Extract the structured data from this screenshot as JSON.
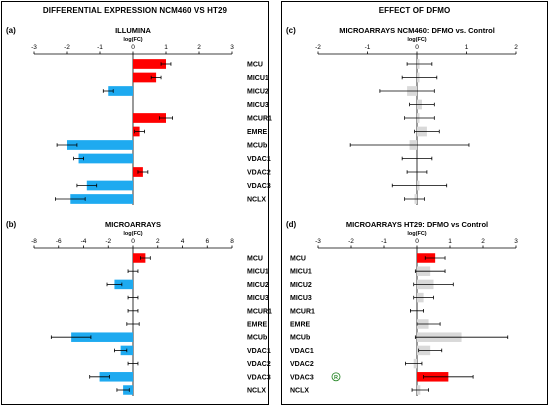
{
  "panels_header": {
    "left_title": "DIFFERENTIAL EXPRESSION NCM460 VS HT29",
    "right_title": "EFFECT OF DFMO"
  },
  "colors": {
    "up": "#ff0000",
    "down": "#1eaaf0",
    "neutral": "#d9d9d9",
    "error": "#000000",
    "marker": "#2e8b2e"
  },
  "chart_data": [
    {
      "id": "a",
      "type": "bar",
      "orientation": "horizontal",
      "letter": "(a)",
      "title": "ILLUMINA",
      "xlabel": "log(FC)",
      "xlim": [
        -3,
        3
      ],
      "xticks": [
        -3,
        -2,
        -1,
        0,
        1,
        2,
        3
      ],
      "grid": false,
      "categories": [
        "MCU",
        "MICU1",
        "MICU2",
        "MICU3",
        "MCUR1",
        "EMRE",
        "MCUb",
        "VDAC1",
        "VDAC2",
        "VDAC3",
        "NCLX"
      ],
      "values": [
        1.0,
        0.7,
        -0.75,
        0.0,
        1.0,
        0.2,
        -2.0,
        -1.65,
        0.3,
        -1.4,
        -1.9
      ],
      "errors": [
        0.15,
        0.15,
        0.15,
        0,
        0.2,
        0.15,
        0.3,
        0.15,
        0.15,
        0.3,
        0.45
      ],
      "colors": [
        "up",
        "up",
        "down",
        "none",
        "up",
        "up",
        "down",
        "down",
        "up",
        "down",
        "down"
      ]
    },
    {
      "id": "b",
      "type": "bar",
      "orientation": "horizontal",
      "letter": "(b)",
      "title": "MICROARRAYS",
      "xlabel": "log(FC)",
      "xlim": [
        -8,
        8
      ],
      "xticks": [
        -8,
        -6,
        -4,
        -2,
        0,
        2,
        4,
        6,
        8
      ],
      "grid": false,
      "categories": [
        "MCU",
        "MICU1",
        "MICU2",
        "MICU3",
        "MCUR1",
        "EMRE",
        "MCUb",
        "VDAC1",
        "VDAC2",
        "VDAC3",
        "NCLX"
      ],
      "values": [
        1.0,
        0.0,
        -1.5,
        0.0,
        0.0,
        0.0,
        -5.0,
        -1.0,
        0.0,
        -2.7,
        -0.8
      ],
      "errors": [
        0.4,
        0.4,
        0.6,
        0.4,
        0.4,
        0.5,
        1.6,
        0.5,
        0.4,
        0.8,
        0.5
      ],
      "colors": [
        "up",
        "none",
        "down",
        "none",
        "none",
        "none",
        "down",
        "down",
        "none",
        "down",
        "down"
      ]
    },
    {
      "id": "c",
      "type": "bar",
      "orientation": "horizontal",
      "letter": "(c)",
      "title": "MICROARRAYS NCM460: DFMO vs. Control",
      "xlabel": "log(FC)",
      "xlim": [
        -2,
        2
      ],
      "xticks": [
        -2,
        -1,
        0,
        1,
        2
      ],
      "grid": false,
      "categories": [
        "MCU",
        "MICU1",
        "MICU2",
        "MICU3",
        "MCUR1",
        "EMRE",
        "MCUb",
        "VDAC1",
        "VDAC2",
        "VDAC3",
        "NCLX"
      ],
      "values": [
        0.05,
        0.05,
        -0.2,
        0.1,
        0.05,
        0.2,
        -0.15,
        0.0,
        0.0,
        0.05,
        -0.05
      ],
      "errors": [
        0.25,
        0.35,
        0.55,
        0.25,
        0.3,
        0.25,
        1.2,
        0.3,
        0.2,
        0.55,
        0.2
      ],
      "colors": [
        "neutral",
        "neutral",
        "neutral",
        "neutral",
        "neutral",
        "neutral",
        "neutral",
        "neutral",
        "neutral",
        "neutral",
        "neutral"
      ]
    },
    {
      "id": "d",
      "type": "bar",
      "orientation": "horizontal",
      "letter": "(d)",
      "title": "MICROARRAYS HT29: DFMO vs Control",
      "xlabel": "log(FC)",
      "xlim": [
        -3,
        3
      ],
      "xticks": [
        -3,
        -2,
        -1,
        0,
        1,
        2,
        3
      ],
      "grid": false,
      "categories": [
        "MCU",
        "MICU1",
        "MICU2",
        "MICU3",
        "MCUR1",
        "EMRE",
        "MCUb",
        "VDAC1",
        "VDAC2",
        "VDAC3",
        "NCLX"
      ],
      "values": [
        0.55,
        0.4,
        0.5,
        0.2,
        0.0,
        0.35,
        1.35,
        0.4,
        -0.1,
        0.95,
        0.1
      ],
      "errors": [
        0.3,
        0.45,
        0.6,
        0.3,
        0.2,
        0.35,
        1.4,
        0.35,
        0.25,
        0.75,
        0.25
      ],
      "colors": [
        "up",
        "neutral",
        "neutral",
        "neutral",
        "neutral",
        "neutral",
        "neutral",
        "neutral",
        "neutral",
        "up",
        "neutral"
      ],
      "annotations": [
        {
          "category": "VDAC3",
          "text": "R"
        }
      ]
    }
  ]
}
